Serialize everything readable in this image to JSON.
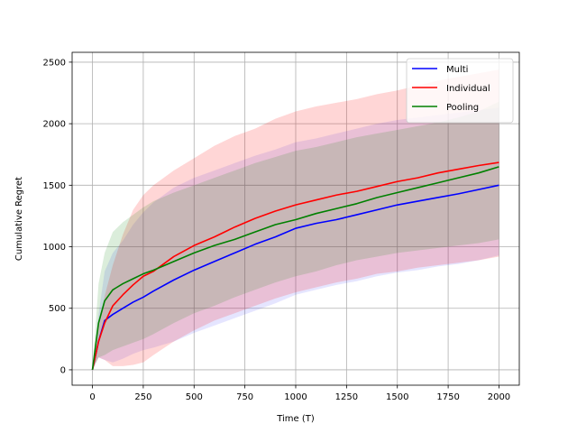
{
  "chart_data": {
    "type": "line",
    "title": "",
    "xlabel": "Time (T)",
    "ylabel": "Cumulative Regret",
    "xlim": [
      -100,
      2100
    ],
    "ylim": [
      -125,
      2580
    ],
    "xticks": [
      0,
      250,
      500,
      750,
      1000,
      1250,
      1500,
      1750,
      2000
    ],
    "yticks": [
      0,
      500,
      1000,
      1500,
      2000,
      2500
    ],
    "grid": true,
    "legend": "top-right",
    "series": [
      {
        "name": "Multi",
        "color": "#0000ff",
        "x": [
          0,
          30,
          60,
          100,
          150,
          200,
          250,
          300,
          400,
          500,
          600,
          700,
          800,
          900,
          1000,
          1100,
          1200,
          1300,
          1400,
          1500,
          1600,
          1700,
          1800,
          1900,
          2000
        ],
        "values": [
          0,
          230,
          400,
          450,
          500,
          550,
          590,
          640,
          730,
          810,
          880,
          950,
          1020,
          1080,
          1150,
          1190,
          1220,
          1260,
          1300,
          1340,
          1370,
          1400,
          1430,
          1465,
          1500
        ],
        "band_lower": [
          0,
          100,
          80,
          60,
          90,
          130,
          160,
          180,
          230,
          300,
          360,
          420,
          480,
          540,
          610,
          650,
          690,
          720,
          760,
          790,
          810,
          840,
          860,
          890,
          930
        ],
        "band_upper": [
          0,
          450,
          800,
          950,
          1050,
          1180,
          1280,
          1360,
          1480,
          1560,
          1620,
          1680,
          1740,
          1790,
          1850,
          1880,
          1920,
          1960,
          2000,
          2030,
          2050,
          2070,
          2090,
          2110,
          2130
        ]
      },
      {
        "name": "Individual",
        "color": "#ff0000",
        "x": [
          0,
          30,
          60,
          100,
          150,
          200,
          250,
          300,
          400,
          500,
          600,
          700,
          800,
          900,
          1000,
          1100,
          1200,
          1300,
          1400,
          1500,
          1600,
          1700,
          1800,
          1900,
          2000
        ],
        "values": [
          0,
          230,
          380,
          520,
          610,
          690,
          760,
          800,
          920,
          1010,
          1080,
          1160,
          1230,
          1290,
          1340,
          1380,
          1420,
          1450,
          1490,
          1530,
          1560,
          1600,
          1630,
          1660,
          1685
        ],
        "band_lower": [
          0,
          100,
          80,
          30,
          30,
          40,
          60,
          120,
          230,
          320,
          400,
          460,
          520,
          580,
          630,
          670,
          710,
          740,
          780,
          800,
          830,
          850,
          870,
          890,
          920
        ],
        "band_upper": [
          0,
          350,
          600,
          850,
          1100,
          1300,
          1420,
          1500,
          1620,
          1720,
          1820,
          1900,
          1960,
          2040,
          2100,
          2140,
          2170,
          2200,
          2240,
          2270,
          2310,
          2350,
          2380,
          2410,
          2440
        ]
      },
      {
        "name": "Pooling",
        "color": "#008000",
        "x": [
          0,
          30,
          60,
          100,
          150,
          200,
          250,
          300,
          400,
          500,
          600,
          700,
          800,
          900,
          1000,
          1100,
          1200,
          1300,
          1400,
          1500,
          1600,
          1700,
          1800,
          1900,
          2000
        ],
        "values": [
          0,
          380,
          560,
          650,
          700,
          740,
          780,
          810,
          880,
          950,
          1010,
          1060,
          1120,
          1180,
          1220,
          1270,
          1310,
          1350,
          1400,
          1440,
          1480,
          1520,
          1560,
          1600,
          1650
        ],
        "band_lower": [
          0,
          100,
          120,
          160,
          190,
          220,
          250,
          290,
          380,
          460,
          520,
          590,
          650,
          710,
          760,
          800,
          850,
          890,
          920,
          950,
          970,
          990,
          1010,
          1030,
          1060
        ],
        "band_upper": [
          0,
          700,
          950,
          1120,
          1200,
          1260,
          1320,
          1370,
          1440,
          1500,
          1560,
          1620,
          1680,
          1730,
          1780,
          1810,
          1850,
          1890,
          1920,
          1950,
          1980,
          2010,
          2050,
          2100,
          2180
        ]
      }
    ]
  }
}
